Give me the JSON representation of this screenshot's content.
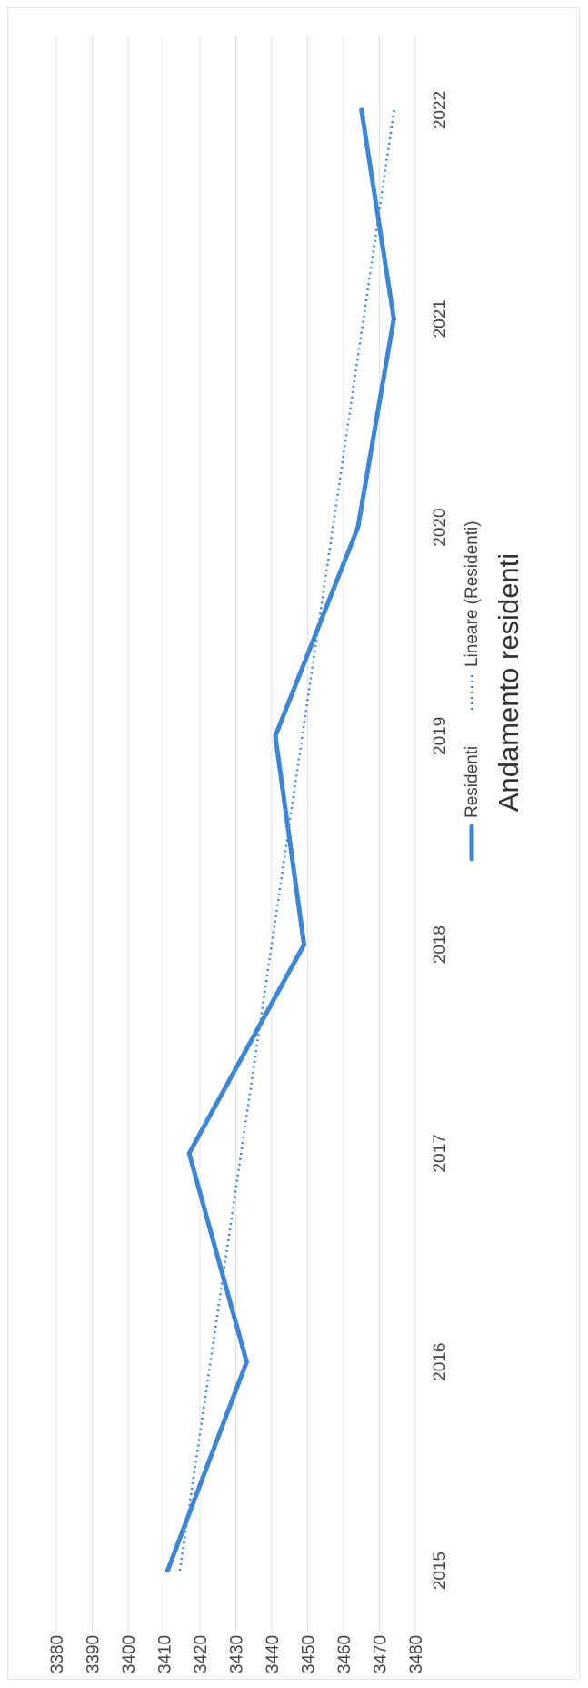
{
  "chart_data": {
    "type": "line",
    "title": "Andamento residenti",
    "categories": [
      "2015",
      "2016",
      "2017",
      "2018",
      "2019",
      "2020",
      "2021",
      "2022"
    ],
    "y_ticks": [
      "3380",
      "3390",
      "3400",
      "3410",
      "3420",
      "3430",
      "3440",
      "3450",
      "3460",
      "3470",
      "3480"
    ],
    "ylim": [
      3380,
      3480
    ],
    "grid": true,
    "legend_position": "bottom",
    "series": [
      {
        "name": "Residenti",
        "values": [
          3411,
          3433,
          3417,
          3449,
          3441,
          3464,
          3474,
          3465
        ],
        "color": "#3b86d6",
        "style": "solid"
      },
      {
        "name": "Lineare (Residenti)",
        "trendline_of": "Residenti",
        "trendline_type": "linear",
        "color": "#3b86d6",
        "style": "dotted"
      }
    ]
  }
}
